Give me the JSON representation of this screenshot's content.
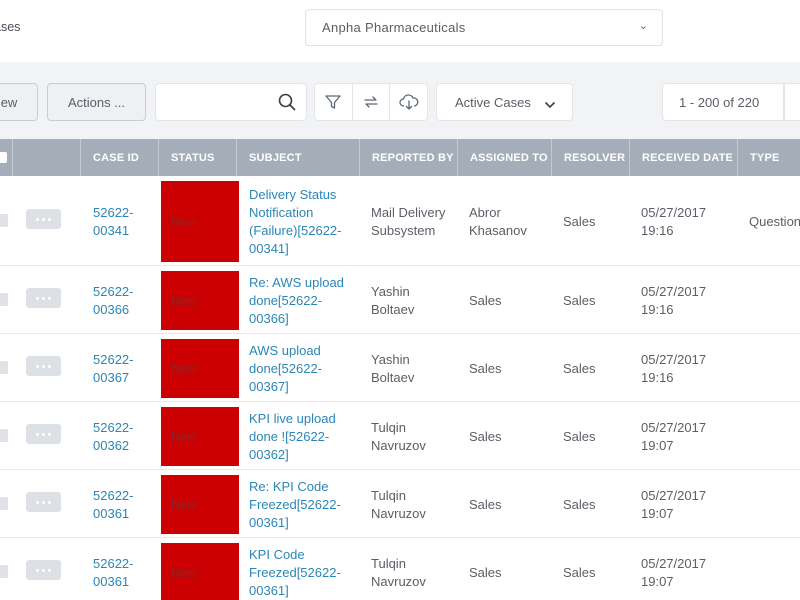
{
  "topbar": {
    "breadcrumb": "ases",
    "company": "Anpha Pharmaceuticals"
  },
  "toolbar": {
    "new_label": "ew",
    "actions_label": "Actions ...",
    "search_placeholder": "",
    "view_label": "Active Cases",
    "pager_label": "1 - 200 of 220"
  },
  "table": {
    "columns": [
      "CASE ID",
      "STATUS",
      "SUBJECT",
      "REPORTED BY",
      "ASSIGNED TO",
      "RESOLVER",
      "RECEIVED DATE",
      "TYPE"
    ],
    "rows": [
      {
        "case_id": "52622-\n00341",
        "status": "New",
        "subject": "Delivery Status\nNotification\n(Failure)[52622-\n00341]",
        "reported_by": "Mail Delivery\nSubsystem",
        "assigned_to": "Abror\nKhasanov",
        "resolver": "Sales",
        "received": "05/27/2017\n19:16",
        "type": "Question"
      },
      {
        "case_id": "52622-\n00366",
        "status": "New",
        "subject": "Re: AWS upload\ndone[52622-\n00366]",
        "reported_by": "Yashin\nBoltaev",
        "assigned_to": "Sales",
        "resolver": "Sales",
        "received": "05/27/2017\n19:16",
        "type": ""
      },
      {
        "case_id": "52622-\n00367",
        "status": "New",
        "subject": "AWS upload\ndone[52622-\n00367]",
        "reported_by": "Yashin\nBoltaev",
        "assigned_to": "Sales",
        "resolver": "Sales",
        "received": "05/27/2017\n19:16",
        "type": ""
      },
      {
        "case_id": "52622-\n00362",
        "status": "New",
        "subject": "KPI live upload\ndone ![52622-\n00362]",
        "reported_by": "Tulqin\nNavruzov",
        "assigned_to": "Sales",
        "resolver": "Sales",
        "received": "05/27/2017\n19:07",
        "type": ""
      },
      {
        "case_id": "52622-\n00361",
        "status": "New",
        "subject": "Re: KPI Code\nFreezed[52622-\n00361]",
        "reported_by": "Tulqin\nNavruzov",
        "assigned_to": "Sales",
        "resolver": "Sales",
        "received": "05/27/2017\n19:07",
        "type": ""
      },
      {
        "case_id": "52622-\n00361",
        "status": "New",
        "subject": "KPI Code\nFreezed[52622-\n00361]",
        "reported_by": "Tulqin\nNavruzov",
        "assigned_to": "Sales",
        "resolver": "Sales",
        "received": "05/27/2017\n19:07",
        "type": ""
      }
    ]
  },
  "colors": {
    "status_new": "#cc0000",
    "header_bg": "#a4adb8",
    "link": "#2b86b8"
  }
}
